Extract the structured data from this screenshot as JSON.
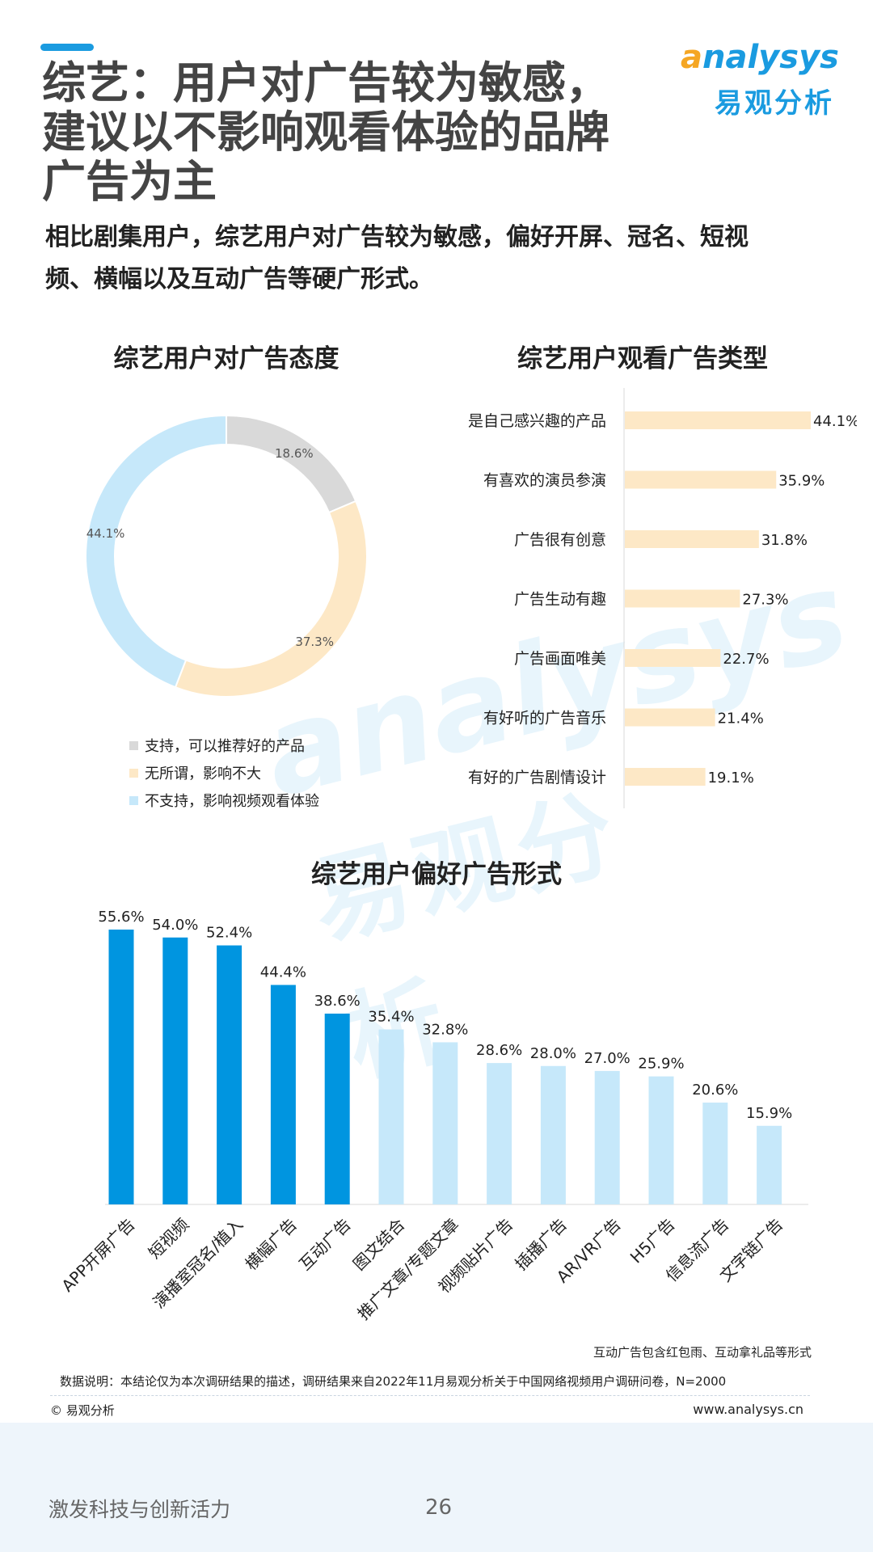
{
  "header": {
    "title": "综艺：用户对广告较为敏感，建议以不影响观看体验的品牌广告为主",
    "title_lines": [
      "综艺：用户对广告较为敏感，",
      "建议以不影响观看体验的品牌",
      "广告为主"
    ],
    "subtitle_lines": [
      "相比剧集用户，综艺用户对广告较为敏感，偏好开屏、冠名、短视",
      "频、横幅以及互动广告等硬广形式。"
    ],
    "logo_en_a": "a",
    "logo_en_rest": "nalysys",
    "logo_cn": "易观分析"
  },
  "colors": {
    "accent": "#1a9be0",
    "dark_blue": "#0095e0",
    "light_blue": "#c6e8fa",
    "light_orange": "#fde8c6",
    "gray": "#d9d9d9",
    "logo_orange": "#f5a623"
  },
  "chart_data": [
    {
      "type": "pie",
      "title": "综艺用户对广告态度",
      "donut": true,
      "legend_position": "bottom-left",
      "slices": [
        {
          "label": "支持，可以推荐好的产品",
          "value": 18.6,
          "value_label": "18.6%",
          "color": "#d9d9d9"
        },
        {
          "label": "无所谓，影响不大",
          "value": 37.3,
          "value_label": "37.3%",
          "color": "#fde8c6"
        },
        {
          "label": "不支持，影响视频观看体验",
          "value": 44.1,
          "value_label": "44.1%",
          "color": "#c6e8fa"
        }
      ]
    },
    {
      "type": "bar",
      "orientation": "horizontal",
      "title": "综艺用户观看广告类型",
      "xlim": [
        0,
        44.1
      ],
      "color": "#fde8c6",
      "categories": [
        "是自己感兴趣的产品",
        "有喜欢的演员参演",
        "广告很有创意",
        "广告生动有趣",
        "广告画面唯美",
        "有好听的广告音乐",
        "有好的广告剧情设计"
      ],
      "values": [
        44.1,
        35.9,
        31.8,
        27.3,
        22.7,
        21.4,
        19.1
      ],
      "value_labels": [
        "44.1%",
        "35.9%",
        "31.8%",
        "27.3%",
        "22.7%",
        "21.4%",
        "19.1%"
      ]
    },
    {
      "type": "bar",
      "orientation": "vertical",
      "title": "综艺用户偏好广告形式",
      "ylim": [
        0,
        55.6
      ],
      "highlight_count": 5,
      "highlight_color": "#0095e0",
      "base_color": "#c6e8fa",
      "categories": [
        "APP开屏广告",
        "短视频",
        "演播室冠名/植入",
        "横幅广告",
        "互动广告",
        "图文结合",
        "推广文章/专题文章",
        "视频贴片广告",
        "插播广告",
        "AR/VR广告",
        "H5广告",
        "信息流广告",
        "文字链广告"
      ],
      "values": [
        55.6,
        54.0,
        52.4,
        44.4,
        38.6,
        35.4,
        32.8,
        28.6,
        28.0,
        27.0,
        25.9,
        20.6,
        15.9
      ],
      "value_labels": [
        "55.6%",
        "54.0%",
        "52.4%",
        "44.4%",
        "38.6%",
        "35.4%",
        "32.8%",
        "28.6%",
        "28.0%",
        "27.0%",
        "25.9%",
        "20.6%",
        "15.9%"
      ]
    }
  ],
  "watermark": {
    "en": "analysys",
    "cn": "易观分析"
  },
  "footer": {
    "footnote": "互动广告包含红包雨、互动拿礼品等形式",
    "data_note": "数据说明：本结论仅为本次调研结果的描述，调研结果来自2022年11月易观分析关于中国网络视频用户调研问卷，N=2000",
    "copyright": "© 易观分析",
    "website": "www.analysys.cn",
    "slogan": "激发科技与创新活力",
    "page_number": "26"
  }
}
